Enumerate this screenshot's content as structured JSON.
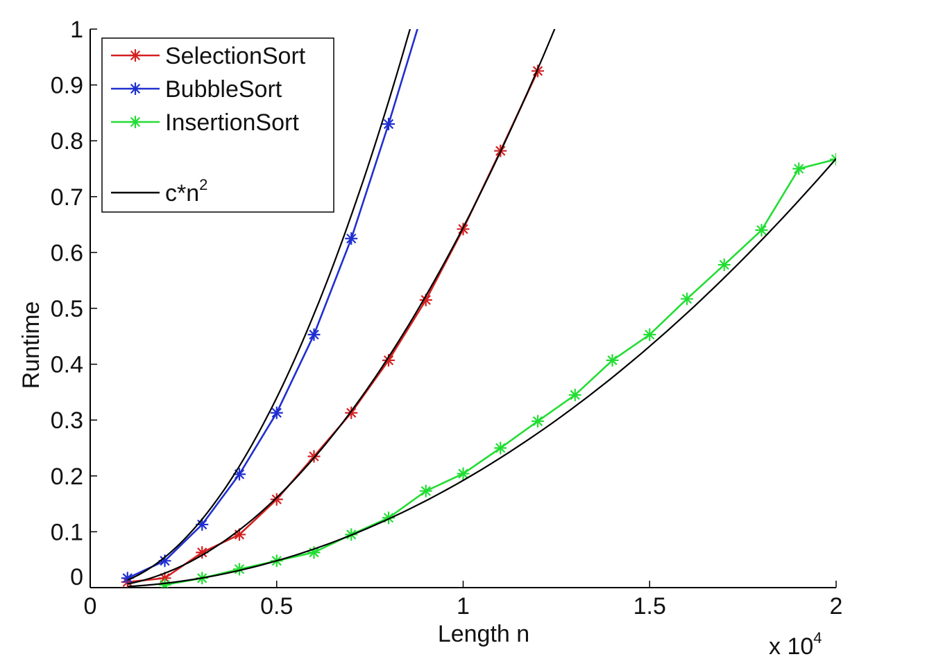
{
  "chart_data": {
    "type": "line",
    "title": "",
    "xlabel": "Length n",
    "ylabel": "Runtime",
    "x_multiplier_label": {
      "base": "x 10",
      "exponent": "4"
    },
    "xlim": [
      0,
      2
    ],
    "ylim": [
      0,
      1
    ],
    "x_ticks": [
      "0",
      "0.5",
      "1",
      "1.5",
      "2"
    ],
    "y_ticks": [
      "0",
      "0.1",
      "0.2",
      "0.3",
      "0.4",
      "0.5",
      "0.6",
      "0.7",
      "0.8",
      "0.9",
      "1"
    ],
    "grid": false,
    "legend_position": "top-left",
    "series": [
      {
        "name": "SelectionSort",
        "color": "#d42020",
        "marker": "asterisk",
        "x": [
          0.1,
          0.2,
          0.3,
          0.4,
          0.5,
          0.6,
          0.7,
          0.8,
          0.9,
          1.0,
          1.1,
          1.2
        ],
        "y": [
          0.01,
          0.017,
          0.063,
          0.095,
          0.158,
          0.235,
          0.313,
          0.407,
          0.515,
          0.642,
          0.782,
          0.925
        ]
      },
      {
        "name": "BubbleSort",
        "color": "#1f2fd0",
        "marker": "asterisk",
        "x": [
          0.1,
          0.2,
          0.3,
          0.4,
          0.5,
          0.6,
          0.7,
          0.8,
          0.9
        ],
        "y": [
          0.017,
          0.048,
          0.113,
          0.203,
          0.313,
          0.453,
          0.625,
          0.83,
          1.05
        ]
      },
      {
        "name": "InsertionSort",
        "color": "#22dd33",
        "marker": "asterisk",
        "x": [
          0.2,
          0.3,
          0.4,
          0.5,
          0.6,
          0.7,
          0.8,
          0.9,
          1.0,
          1.1,
          1.2,
          1.3,
          1.4,
          1.5,
          1.6,
          1.7,
          1.8,
          1.9,
          2.0
        ],
        "y": [
          0.005,
          0.017,
          0.033,
          0.048,
          0.063,
          0.095,
          0.125,
          0.173,
          0.204,
          0.25,
          0.298,
          0.345,
          0.407,
          0.453,
          0.517,
          0.578,
          0.64,
          0.75,
          0.767
        ]
      },
      {
        "name": "c*n",
        "name_superscript": "2",
        "color": "#000000",
        "marker": "none",
        "fits": [
          {
            "coef": 1.36,
            "x_range": [
              0.1,
              0.89
            ]
          },
          {
            "coef": 0.645,
            "x_range": [
              0.1,
              1.26
            ]
          },
          {
            "coef": 0.192,
            "x_range": [
              0.1,
              2.0
            ]
          }
        ]
      }
    ]
  }
}
